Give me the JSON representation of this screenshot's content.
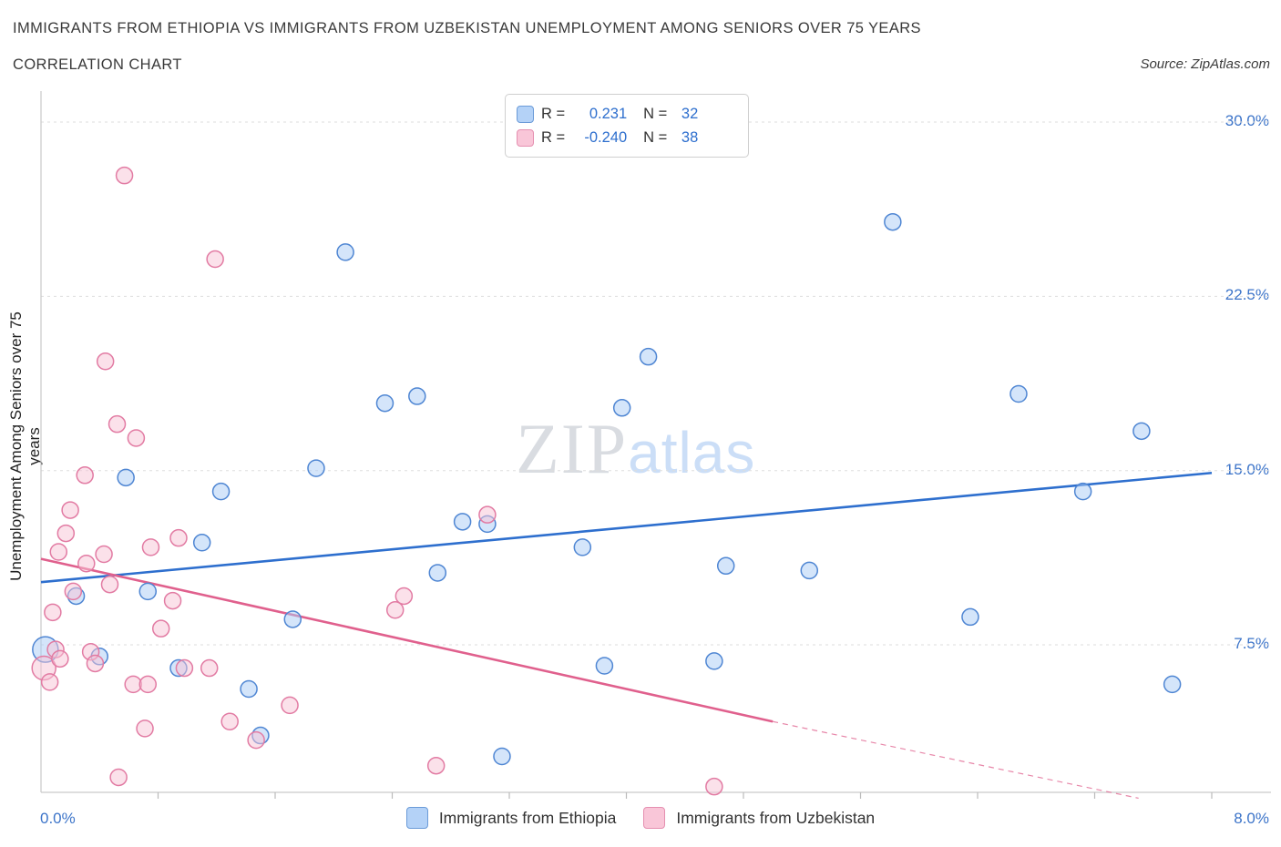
{
  "header": {
    "title_line1": "IMMIGRANTS FROM ETHIOPIA VS IMMIGRANTS FROM UZBEKISTAN UNEMPLOYMENT AMONG SENIORS OVER 75 YEARS",
    "title_line2": "CORRELATION CHART",
    "source": "Source: ZipAtlas.com"
  },
  "watermark": {
    "part1": "ZIP",
    "part2": "atlas"
  },
  "axes": {
    "y_label": "Unemployment Among Seniors over 75 years",
    "y_ticks": [
      "30.0%",
      "22.5%",
      "15.0%",
      "7.5%"
    ],
    "x_tick_left": "0.0%",
    "x_tick_right": "8.0%"
  },
  "legend_box": {
    "rows": [
      {
        "r_label": "R =",
        "r_value": "0.231",
        "n_label": "N =",
        "n_value": "32"
      },
      {
        "r_label": "R =",
        "r_value": "-0.240",
        "n_label": "N =",
        "n_value": "38"
      }
    ]
  },
  "bottom_legend": {
    "items": [
      {
        "label": "Immigrants from Ethiopia"
      },
      {
        "label": "Immigrants from Uzbekistan"
      }
    ]
  },
  "chart_data": {
    "type": "scatter",
    "title": "Immigrants from Ethiopia vs Immigrants from Uzbekistan Unemployment Among Seniors over 75 years",
    "xlabel": "",
    "ylabel": "Unemployment Among Seniors over 75 years",
    "xlim": [
      0,
      8.4
    ],
    "ylim": [
      1,
      31.4
    ],
    "grid_y_values": [
      30,
      22.5,
      15,
      7.5
    ],
    "x_axis_unit": "%",
    "y_axis_unit": "%",
    "legend_position": "bottom",
    "grid": "horizontal-dashed",
    "series": [
      {
        "name": "Immigrants from Ethiopia",
        "R": 0.231,
        "N": 32,
        "fill": "#a9ccf6",
        "edge": "#4f86d3",
        "line_color": "#2e6fce",
        "trend": {
          "x0": 0,
          "y0": 10.2,
          "x1": 8,
          "y1": 14.9
        },
        "points": [
          [
            0.03,
            7.3,
            14
          ],
          [
            0.24,
            9.6
          ],
          [
            0.4,
            7.0
          ],
          [
            0.58,
            14.7
          ],
          [
            0.73,
            9.8
          ],
          [
            0.94,
            6.5
          ],
          [
            1.1,
            11.9
          ],
          [
            1.23,
            14.1
          ],
          [
            1.42,
            5.6
          ],
          [
            1.5,
            3.6
          ],
          [
            1.72,
            8.6
          ],
          [
            1.88,
            15.1
          ],
          [
            2.08,
            24.4
          ],
          [
            2.35,
            17.9
          ],
          [
            2.57,
            18.2
          ],
          [
            2.71,
            10.6
          ],
          [
            2.88,
            12.8
          ],
          [
            3.05,
            12.7
          ],
          [
            3.15,
            2.7
          ],
          [
            3.7,
            11.7
          ],
          [
            3.85,
            6.6
          ],
          [
            3.97,
            17.7
          ],
          [
            4.15,
            19.9
          ],
          [
            4.6,
            6.8
          ],
          [
            4.68,
            10.9
          ],
          [
            5.25,
            10.7
          ],
          [
            5.82,
            25.7
          ],
          [
            6.35,
            8.7
          ],
          [
            6.68,
            18.3
          ],
          [
            7.12,
            14.1
          ],
          [
            7.52,
            16.7
          ],
          [
            7.73,
            5.8
          ]
        ]
      },
      {
        "name": "Immigrants from Uzbekistan",
        "R": -0.24,
        "N": 38,
        "fill": "#f7c3d6",
        "edge": "#e27ba3",
        "line_color": "#e0608d",
        "trend": {
          "x0": 0,
          "y0": 11.2,
          "x1": 5,
          "y1": 4.2,
          "dash_x1": 7.5,
          "dash_y1": 0.9
        },
        "points": [
          [
            0.02,
            6.5,
            13
          ],
          [
            0.06,
            5.9
          ],
          [
            0.08,
            8.9
          ],
          [
            0.1,
            7.3
          ],
          [
            0.12,
            11.5
          ],
          [
            0.13,
            6.9
          ],
          [
            0.17,
            12.3
          ],
          [
            0.2,
            13.3
          ],
          [
            0.22,
            9.8
          ],
          [
            0.3,
            14.8
          ],
          [
            0.31,
            11.0
          ],
          [
            0.34,
            7.2
          ],
          [
            0.37,
            6.7
          ],
          [
            0.43,
            11.4
          ],
          [
            0.44,
            19.7
          ],
          [
            0.47,
            10.1
          ],
          [
            0.52,
            17.0
          ],
          [
            0.53,
            1.8
          ],
          [
            0.57,
            27.7
          ],
          [
            0.63,
            5.8
          ],
          [
            0.65,
            16.4
          ],
          [
            0.71,
            3.9
          ],
          [
            0.73,
            5.8
          ],
          [
            0.75,
            11.7
          ],
          [
            0.82,
            8.2
          ],
          [
            0.9,
            9.4
          ],
          [
            0.94,
            12.1
          ],
          [
            0.98,
            6.5
          ],
          [
            1.15,
            6.5
          ],
          [
            1.19,
            24.1
          ],
          [
            1.29,
            4.2
          ],
          [
            1.47,
            3.4
          ],
          [
            1.7,
            4.9
          ],
          [
            2.42,
            9.0
          ],
          [
            2.48,
            9.6
          ],
          [
            2.7,
            2.3
          ],
          [
            3.05,
            13.1
          ],
          [
            4.6,
            1.4
          ]
        ]
      }
    ]
  }
}
